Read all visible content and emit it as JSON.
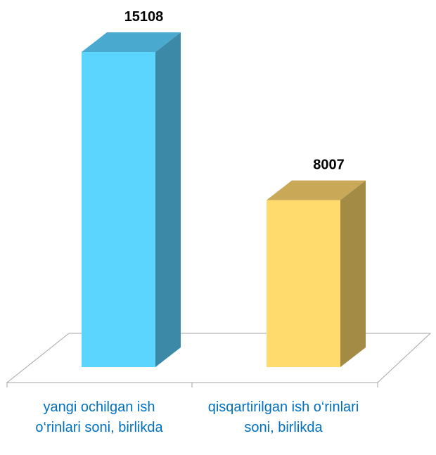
{
  "chart_data": {
    "type": "bar3d",
    "categories": [
      "yangi ochilgan ish o‘rinlari soni, birlikda",
      "qisqartirilgan ish o‘rinlari soni, birlikda"
    ],
    "values": [
      15108,
      8007
    ],
    "colors": [
      "#5cd5fe",
      "#ffdb6e"
    ],
    "side_colors": [
      "#3b89a6",
      "#a38b45"
    ],
    "top_colors": [
      "#4aa9cf",
      "#c9a957"
    ]
  }
}
